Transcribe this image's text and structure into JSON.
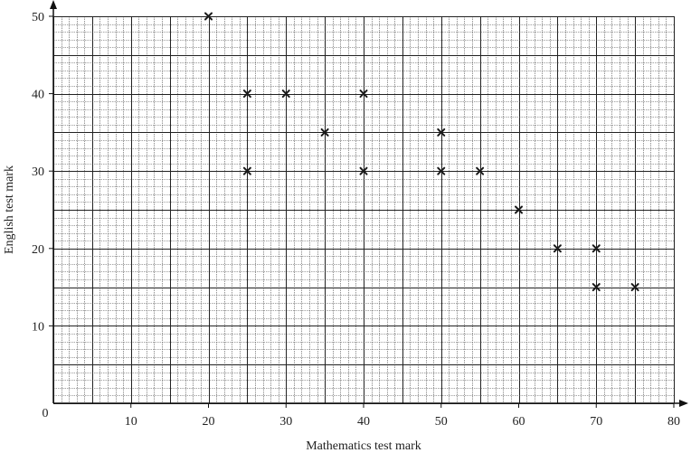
{
  "chart_data": {
    "type": "scatter",
    "title": "",
    "xlabel": "Mathematics test mark",
    "ylabel": "English test mark",
    "xlim": [
      0,
      80
    ],
    "ylim": [
      0,
      50
    ],
    "x_ticks": [
      10,
      20,
      30,
      40,
      50,
      60,
      70,
      80
    ],
    "y_ticks": [
      10,
      20,
      30,
      40,
      50
    ],
    "origin_label": "0",
    "grid": true,
    "grid_minor_step": 1,
    "grid_major_step": 5,
    "marker": "x",
    "points": [
      {
        "x": 20,
        "y": 50
      },
      {
        "x": 25,
        "y": 40
      },
      {
        "x": 25,
        "y": 30
      },
      {
        "x": 30,
        "y": 40
      },
      {
        "x": 35,
        "y": 35
      },
      {
        "x": 40,
        "y": 40
      },
      {
        "x": 40,
        "y": 30
      },
      {
        "x": 50,
        "y": 35
      },
      {
        "x": 50,
        "y": 30
      },
      {
        "x": 55,
        "y": 30
      },
      {
        "x": 60,
        "y": 25
      },
      {
        "x": 65,
        "y": 20
      },
      {
        "x": 70,
        "y": 20
      },
      {
        "x": 70,
        "y": 15
      },
      {
        "x": 75,
        "y": 15
      }
    ],
    "colors": {
      "axis": "#111111",
      "grid_minor": "#555555",
      "grid_major": "#222222",
      "marker": "#1a1a1a"
    }
  }
}
